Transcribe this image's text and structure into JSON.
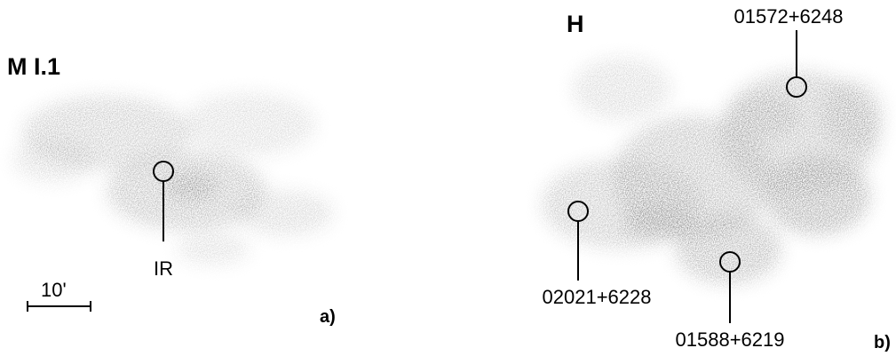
{
  "panels": [
    {
      "title": "M I.1",
      "scale_label": "10'",
      "sources": [
        "IR"
      ],
      "label": "a)"
    },
    {
      "title": "H",
      "sources": [
        "01572+6248",
        "02021+6228",
        "01588+6219"
      ],
      "label": "b)"
    }
  ]
}
